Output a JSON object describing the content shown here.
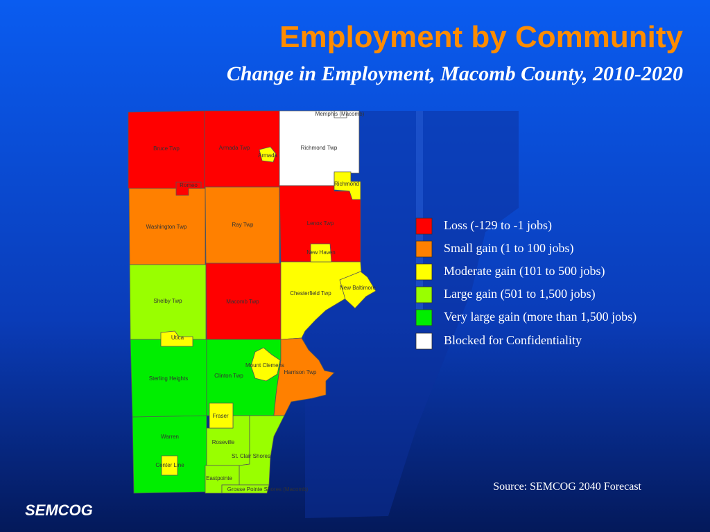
{
  "title": "Employment by Community",
  "subtitle": "Change in Employment, Macomb County, 2010-2020",
  "legend": [
    {
      "label": "Loss (-129 to -1 jobs)",
      "color": "#ff0000"
    },
    {
      "label": "Small gain (1 to 100 jobs)",
      "color": "#ff8000"
    },
    {
      "label": "Moderate gain (101 to 500 jobs)",
      "color": "#ffff00"
    },
    {
      "label": "Large gain (501 to 1,500 jobs)",
      "color": "#99ff00"
    },
    {
      "label": "Very large gain (more than 1,500 jobs)",
      "color": "#00ee00"
    },
    {
      "label": "Blocked for Confidentiality",
      "color": "#ffffff"
    }
  ],
  "communities": [
    {
      "name": "Bruce Twp",
      "color": "#ff0000"
    },
    {
      "name": "Romeo",
      "color": "#ff0000"
    },
    {
      "name": "Armada Twp",
      "color": "#ff0000"
    },
    {
      "name": "Armada",
      "color": "#ffff00"
    },
    {
      "name": "Richmond Twp",
      "color": "#ffffff"
    },
    {
      "name": "Richmond",
      "color": "#ffff00"
    },
    {
      "name": "Memphis (Macomb)",
      "color": "#ffffff"
    },
    {
      "name": "Washington Twp",
      "color": "#ff8000"
    },
    {
      "name": "Ray Twp",
      "color": "#ff8000"
    },
    {
      "name": "Lenox Twp",
      "color": "#ff0000"
    },
    {
      "name": "New Haven",
      "color": "#ffff00"
    },
    {
      "name": "Shelby Twp",
      "color": "#99ff00"
    },
    {
      "name": "Macomb Twp",
      "color": "#ff0000"
    },
    {
      "name": "Chesterfield Twp",
      "color": "#ffff00"
    },
    {
      "name": "New Baltimore",
      "color": "#ffff00"
    },
    {
      "name": "Utica",
      "color": "#ffff00"
    },
    {
      "name": "Sterling Heights",
      "color": "#00ee00"
    },
    {
      "name": "Clinton Twp",
      "color": "#00ee00"
    },
    {
      "name": "Mount Clemens",
      "color": "#ffff00"
    },
    {
      "name": "Harrison Twp",
      "color": "#ff8000"
    },
    {
      "name": "Fraser",
      "color": "#ffff00"
    },
    {
      "name": "Warren",
      "color": "#00ee00"
    },
    {
      "name": "Center Line",
      "color": "#ffff00"
    },
    {
      "name": "Roseville",
      "color": "#99ff00"
    },
    {
      "name": "St. Clair Shores",
      "color": "#99ff00"
    },
    {
      "name": "Eastpointe",
      "color": "#99ff00"
    },
    {
      "name": "Grosse Pointe Shores (Macomb)",
      "color": "#99ff00"
    }
  ],
  "source": "Source: SEMCOG 2040 Forecast",
  "logo": "SEMCOG"
}
